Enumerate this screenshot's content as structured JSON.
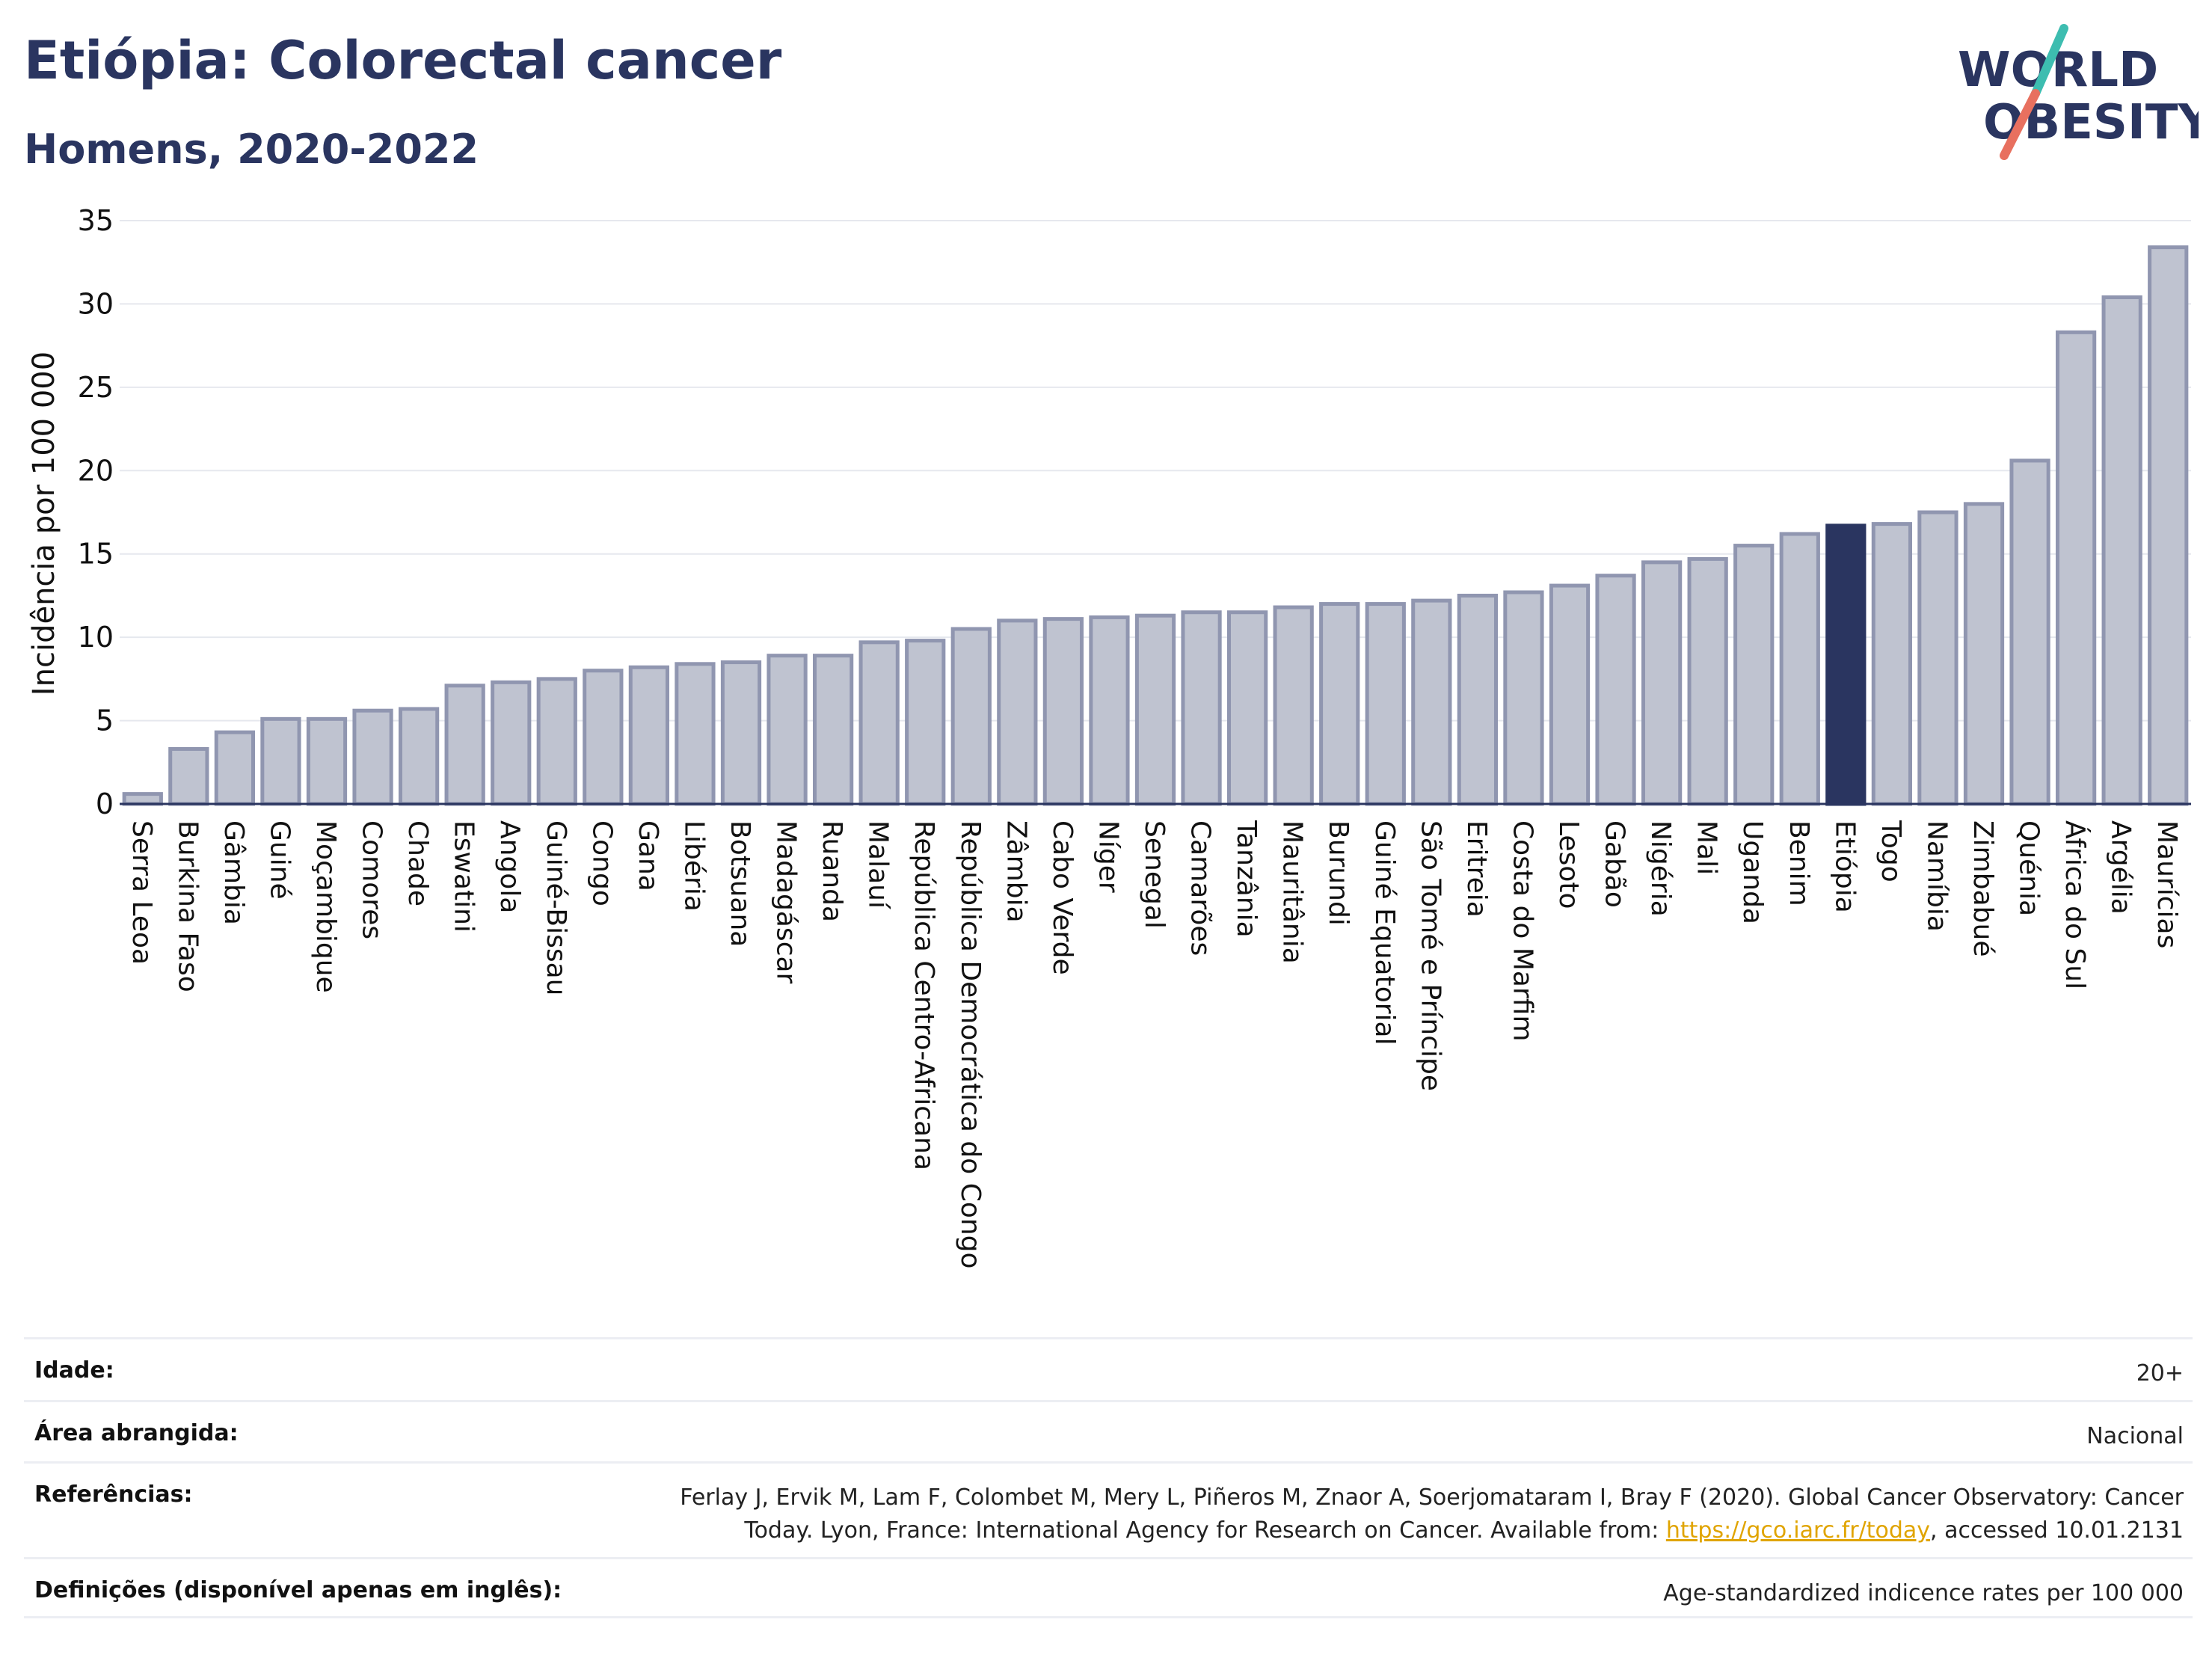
{
  "header": {
    "title": "Etiópia: Colorectal cancer",
    "subtitle": "Homens, 2020-2022"
  },
  "logo": {
    "line1": "WORLD",
    "line2": "OBESITY"
  },
  "colors": {
    "bar": "#bfc3d0",
    "bar_border": "#9096b0",
    "highlight": "#2a3560",
    "text": "#2a3560",
    "grid": "#e6e8ee",
    "link": "#e0a400",
    "logo_teal": "#3dbdb0",
    "logo_coral": "#e8705f"
  },
  "chart_data": {
    "type": "bar",
    "ylabel": "Incidência por 100 000",
    "ylim": [
      0,
      35
    ],
    "yticks": [
      0,
      5,
      10,
      15,
      20,
      25,
      30,
      35
    ],
    "highlight": "Etiópia",
    "categories": [
      "Serra Leoa",
      "Burkina Faso",
      "Gâmbia",
      "Guiné",
      "Moçambique",
      "Comores",
      "Chade",
      "Eswatini",
      "Angola",
      "Guiné-Bissau",
      "Congo",
      "Gana",
      "Libéria",
      "Botsuana",
      "Madagáscar",
      "Ruanda",
      "Malauí",
      "República Centro-Africana",
      "República Democrática do Congo",
      "Zâmbia",
      "Cabo Verde",
      "Níger",
      "Senegal",
      "Camarões",
      "Tanzânia",
      "Mauritânia",
      "Burundi",
      "Guiné Equatorial",
      "São Tomé e Príncipe",
      "Eritreia",
      "Costa do Marfim",
      "Lesoto",
      "Gabão",
      "Nigéria",
      "Mali",
      "Uganda",
      "Benim",
      "Etiópia",
      "Togo",
      "Namíbia",
      "Zimbabué",
      "Quénia",
      "África do Sul",
      "Argélia",
      "Maurícias"
    ],
    "values": [
      0.6,
      3.3,
      4.3,
      5.1,
      5.1,
      5.6,
      5.7,
      7.1,
      7.3,
      7.5,
      8.0,
      8.2,
      8.4,
      8.5,
      8.9,
      8.9,
      9.7,
      9.8,
      10.5,
      11.0,
      11.1,
      11.2,
      11.3,
      11.5,
      11.5,
      11.8,
      12.0,
      12.0,
      12.2,
      12.5,
      12.7,
      13.1,
      13.7,
      14.5,
      14.7,
      15.5,
      16.2,
      16.7,
      16.8,
      17.5,
      18.0,
      20.6,
      28.3,
      30.4,
      33.4
    ]
  },
  "info": {
    "age_label": "Idade:",
    "age_value": "20+",
    "area_label": "Área abrangida:",
    "area_value": "Nacional",
    "ref_label": "Referências:",
    "ref_text_1": "Ferlay J, Ervik M, Lam F, Colombet M, Mery L, Piñeros M, Znaor A, Soerjomataram I, Bray F (2020). Global Cancer Observatory: Cancer",
    "ref_text_2": "Today. Lyon, France: International Agency for Research on Cancer. Available from: ",
    "ref_link": "https://gco.iarc.fr/today",
    "ref_text_3": ", accessed 10.01.2131",
    "def_label": "Definições (disponível apenas em inglês):",
    "def_value": "Age-standardized indicence rates per 100 000"
  }
}
